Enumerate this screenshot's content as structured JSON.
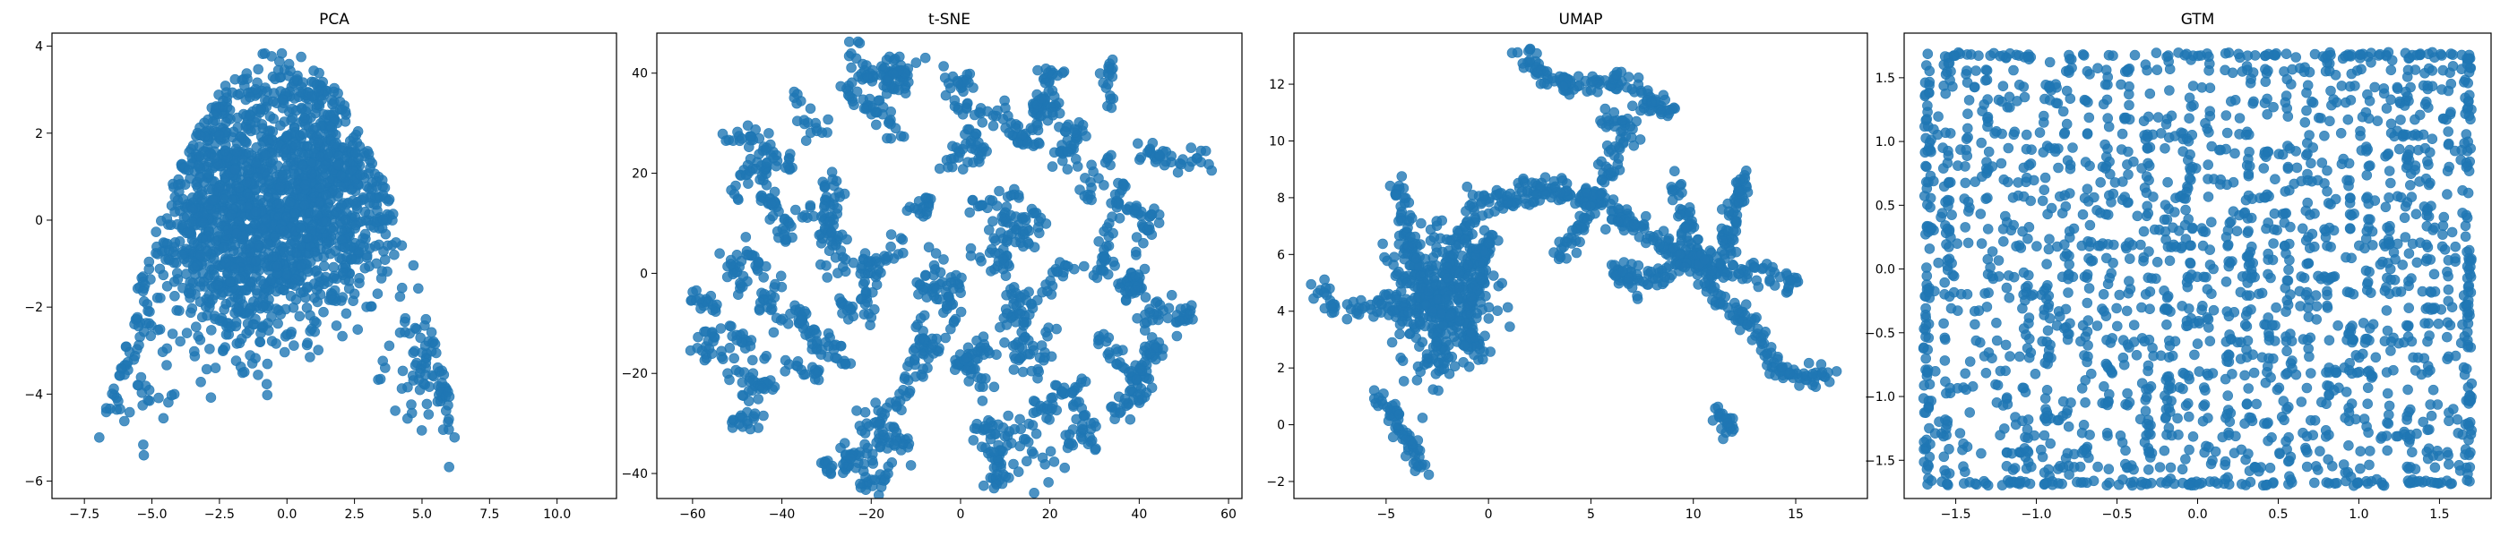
{
  "chart_data": [
    {
      "type": "scatter",
      "title": "PCA",
      "xlim": [
        -8.7,
        12.2
      ],
      "ylim": [
        -6.4,
        4.3
      ],
      "xticks": [
        -7.5,
        -5.0,
        -2.5,
        0.0,
        2.5,
        5.0,
        7.5,
        10.0
      ],
      "yticks": [
        -6,
        -4,
        -2,
        0,
        2,
        4
      ],
      "xtick_labels": [
        "−7.5",
        "−5.0",
        "−2.5",
        "0.0",
        "2.5",
        "5.0",
        "7.5",
        "10.0"
      ],
      "ytick_labels": [
        "−6",
        "−4",
        "−2",
        "0",
        "2",
        "4"
      ],
      "color": "#1f77b4",
      "generator": {
        "n": 2000,
        "seed": 11,
        "clusters": [
          {
            "cx": -2.4,
            "cy": 0.6,
            "sx": 1.4,
            "sy": 1.5,
            "w": 0.32
          },
          {
            "cx": 1.6,
            "cy": 1.0,
            "sx": 1.6,
            "sy": 1.3,
            "w": 0.32
          },
          {
            "cx": -0.5,
            "cy": -1.0,
            "sx": 1.8,
            "sy": 1.2,
            "w": 0.16
          },
          {
            "cx": 6.0,
            "cy": -3.3,
            "sx": 1.0,
            "sy": 0.8,
            "w": 0.08
          },
          {
            "cx": -6.2,
            "cy": -2.6,
            "sx": 1.0,
            "sy": 1.3,
            "w": 0.07
          },
          {
            "cx": 8.2,
            "cy": -1.6,
            "sx": 1.1,
            "sy": 0.6,
            "w": 0.03
          },
          {
            "cx": -0.4,
            "cy": 3.0,
            "sx": 1.5,
            "sy": 0.5,
            "w": 0.02
          }
        ],
        "clipx": [
          -8.3,
          11.2
        ],
        "clipy": [
          -5.9,
          3.9
        ]
      }
    },
    {
      "type": "scatter",
      "title": "t-SNE",
      "xlim": [
        -68,
        63
      ],
      "ylim": [
        -45,
        48
      ],
      "xticks": [
        -60,
        -40,
        -20,
        0,
        20,
        40,
        60
      ],
      "yticks": [
        -40,
        -20,
        0,
        20,
        40
      ],
      "xtick_labels": [
        "−60",
        "−40",
        "−20",
        "0",
        "20",
        "40",
        "60"
      ],
      "ytick_labels": [
        "−40",
        "−20",
        "0",
        "20",
        "40"
      ],
      "color": "#1f77b4",
      "generator": {
        "n": 1800,
        "seed": 23,
        "fragments": 90,
        "spread": 2.6,
        "range_x": [
          -62,
          57
        ],
        "range_y": [
          -42,
          42
        ],
        "disc": 48,
        "extra": [
          {
            "cx": -15,
            "cy": 40,
            "sx": 2.5,
            "sy": 2.0,
            "n": 60
          },
          {
            "cx": -19,
            "cy": -33,
            "sx": 2.0,
            "sy": 4.0,
            "n": 40
          }
        ]
      }
    },
    {
      "type": "scatter",
      "title": "UMAP",
      "xlim": [
        -9.5,
        18.5
      ],
      "ylim": [
        -2.6,
        13.8
      ],
      "xticks": [
        -5,
        0,
        5,
        10,
        15
      ],
      "yticks": [
        -2,
        0,
        2,
        4,
        6,
        8,
        10,
        12
      ],
      "xtick_labels": [
        "−5",
        "0",
        "5",
        "10",
        "15"
      ],
      "ytick_labels": [
        "−2",
        "0",
        "2",
        "4",
        "6",
        "8",
        "10",
        "12"
      ],
      "color": "#1f77b4",
      "generator": {
        "n": 1700,
        "seed": 37,
        "strands": [
          {
            "pts": [
              [
                -8.5,
                5.0
              ],
              [
                -7.5,
                4.1
              ],
              [
                -6,
                4.2
              ],
              [
                -4.5,
                4.0
              ],
              [
                -3,
                4.4
              ],
              [
                -1.5,
                3.6
              ]
            ],
            "n": 90
          },
          {
            "pts": [
              [
                -4.5,
                8.5
              ],
              [
                -4,
                7
              ],
              [
                -3.5,
                5.5
              ],
              [
                -2.8,
                4.2
              ],
              [
                -2.5,
                3.0
              ],
              [
                -2,
                2.0
              ]
            ],
            "n": 120
          },
          {
            "pts": [
              [
                -5.5,
                1.2
              ],
              [
                -4.6,
                0.2
              ],
              [
                -3.8,
                -0.6
              ],
              [
                -3.2,
                -1.6
              ]
            ],
            "n": 60
          },
          {
            "pts": [
              [
                -2.2,
                4.5
              ],
              [
                -1.5,
                6.5
              ],
              [
                -0.5,
                7.8
              ],
              [
                1,
                8.0
              ],
              [
                3,
                8.3
              ],
              [
                5,
                8.0
              ],
              [
                7,
                7.0
              ],
              [
                9,
                6.2
              ],
              [
                11,
                5.6
              ],
              [
                13,
                5.4
              ],
              [
                15,
                5.0
              ]
            ],
            "n": 320
          },
          {
            "pts": [
              [
                1.4,
                13.0
              ],
              [
                3.0,
                12.2
              ],
              [
                4.5,
                11.8
              ],
              [
                6.0,
                12.2
              ],
              [
                7.5,
                11.6
              ],
              [
                9.0,
                11.0
              ]
            ],
            "n": 130
          },
          {
            "pts": [
              [
                3.5,
                6.0
              ],
              [
                4.5,
                7.0
              ],
              [
                6.0,
                9.2
              ],
              [
                7.0,
                10.5
              ],
              [
                5.5,
                10.8
              ]
            ],
            "n": 100
          },
          {
            "pts": [
              [
                9.0,
                8.5
              ],
              [
                10.0,
                6.5
              ],
              [
                11.0,
                4.5
              ],
              [
                12.0,
                4.0
              ],
              [
                13.0,
                3.5
              ],
              [
                14.0,
                2.0
              ],
              [
                15.5,
                1.6
              ],
              [
                17.0,
                1.8
              ]
            ],
            "n": 170
          },
          {
            "pts": [
              [
                12.5,
                8.8
              ],
              [
                12.0,
                7.5
              ],
              [
                11.5,
                6.0
              ]
            ],
            "n": 60
          },
          {
            "pts": [
              [
                11.2,
                0.5
              ],
              [
                12.0,
                -0.3
              ]
            ],
            "n": 25
          },
          {
            "pts": [
              [
                -2.0,
                5.0
              ],
              [
                -1.0,
                5.5
              ],
              [
                0.0,
                6.5
              ],
              [
                -1.2,
                3.5
              ],
              [
                -0.5,
                2.5
              ]
            ],
            "n": 140
          },
          {
            "pts": [
              [
                6.0,
                5.5
              ],
              [
                7.5,
                5.0
              ],
              [
                9.0,
                5.5
              ],
              [
                10.5,
                5.8
              ]
            ],
            "n": 90
          }
        ],
        "blob": {
          "cx": -2.5,
          "cy": 4.5,
          "sx": 1.4,
          "sy": 1.4,
          "n": 250
        },
        "jitter": 0.22
      }
    },
    {
      "type": "scatter",
      "title": "GTM",
      "xlim": [
        -1.82,
        1.82
      ],
      "ylim": [
        -1.8,
        1.85
      ],
      "xticks": [
        -1.5,
        -1.0,
        -0.5,
        0.0,
        0.5,
        1.0,
        1.5
      ],
      "yticks": [
        -1.5,
        -1.0,
        -0.5,
        0.0,
        0.5,
        1.0,
        1.5
      ],
      "xtick_labels": [
        "−1.5",
        "−1.0",
        "−0.5",
        "0.0",
        "0.5",
        "1.0",
        "1.5"
      ],
      "ytick_labels": [
        "−1.5",
        "−1.0",
        "−0.5",
        "0.0",
        "0.5",
        "1.0",
        "1.5"
      ],
      "color": "#1f77b4",
      "generator": {
        "n": 2000,
        "seed": 53,
        "range": [
          -1.68,
          1.68
        ],
        "grid": 28,
        "jitter": 0.035,
        "edge_frac": 0.12
      }
    }
  ]
}
